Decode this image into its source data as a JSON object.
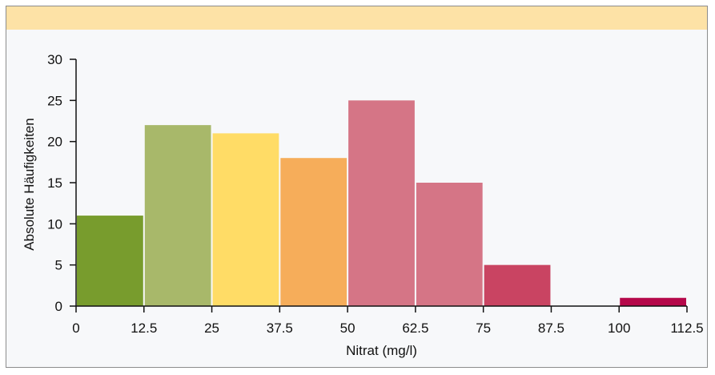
{
  "chart_data": {
    "type": "bar",
    "title": "",
    "xlabel": "Nitrat (mg/l)",
    "ylabel": "Absolute Häufigkeiten",
    "bin_edges": [
      0,
      12.5,
      25,
      37.5,
      50,
      62.5,
      75,
      87.5,
      100,
      112.5
    ],
    "x_tick_labels": [
      "0",
      "12.5",
      "25",
      "37.5",
      "50",
      "62.5",
      "75",
      "87.5",
      "100",
      "112.5"
    ],
    "categories": [
      "0–12.5",
      "12.5–25",
      "25–37.5",
      "37.5–50",
      "50–62.5",
      "62.5–75",
      "75–87.5",
      "87.5–100",
      "100–112.5"
    ],
    "values": [
      11,
      22,
      21,
      18,
      25,
      15,
      5,
      0,
      1
    ],
    "colors": [
      "#789c2d",
      "#a8b86a",
      "#ffdc66",
      "#f6ad5a",
      "#d57586",
      "#d57586",
      "#c94462",
      "#c94462",
      "#b5084a"
    ],
    "ylim": [
      0,
      30
    ],
    "y_ticks": [
      0,
      5,
      10,
      15,
      20,
      25,
      30
    ],
    "xlim": [
      0,
      112.5
    ],
    "grid": false,
    "legend": "none",
    "banner_color": "#fde2a6"
  }
}
